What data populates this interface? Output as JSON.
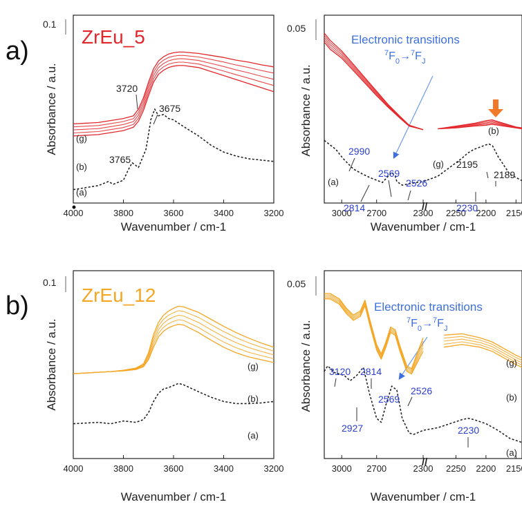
{
  "panel_labels": [
    "a)",
    "b)"
  ],
  "chart_data": [
    {
      "type": "line",
      "panel": "a)",
      "title": "ZrEu_5",
      "title_color": "#e3262a",
      "xlabel": "Wavenumber / cm-1",
      "ylabel": "Absorbance / a.u.",
      "scale_bar_label": "0.1",
      "xlim": [
        4000,
        3200
      ],
      "x_ticks": [
        "4000",
        "3800",
        "3600",
        "3400",
        "3200"
      ],
      "grid": false,
      "series": [
        {
          "label": "(a)",
          "style": "dotted",
          "color": "#222222",
          "x": [
            4000,
            3950,
            3900,
            3860,
            3840,
            3800,
            3780,
            3765,
            3740,
            3710,
            3690,
            3675,
            3660,
            3640,
            3620,
            3600,
            3560,
            3500,
            3450,
            3400,
            3350,
            3300,
            3250,
            3200
          ],
          "y": [
            0.0,
            0.003,
            0.006,
            0.012,
            0.008,
            0.014,
            0.03,
            0.04,
            0.033,
            0.06,
            0.105,
            0.12,
            0.11,
            0.112,
            0.106,
            0.104,
            0.094,
            0.08,
            0.066,
            0.056,
            0.05,
            0.046,
            0.044,
            0.042
          ]
        },
        {
          "label": "(b)",
          "style": "solid",
          "color": "#e3262a",
          "x": [
            4000,
            3900,
            3850,
            3800,
            3760,
            3740,
            3720,
            3700,
            3680,
            3660,
            3640,
            3620,
            3600,
            3580,
            3560,
            3500,
            3450,
            3400,
            3350,
            3300,
            3250,
            3200
          ],
          "y": [
            0.08,
            0.082,
            0.085,
            0.088,
            0.093,
            0.102,
            0.118,
            0.14,
            0.16,
            0.172,
            0.178,
            0.182,
            0.184,
            0.185,
            0.185,
            0.182,
            0.176,
            0.17,
            0.164,
            0.158,
            0.152,
            0.146
          ]
        },
        {
          "label": "(g)",
          "style": "solid",
          "color": "#e3262a",
          "x": [
            4000,
            3900,
            3850,
            3800,
            3760,
            3740,
            3720,
            3700,
            3680,
            3660,
            3640,
            3620,
            3600,
            3580,
            3560,
            3500,
            3450,
            3400,
            3350,
            3300,
            3250,
            3200
          ],
          "y": [
            0.098,
            0.1,
            0.103,
            0.106,
            0.11,
            0.12,
            0.137,
            0.16,
            0.18,
            0.192,
            0.198,
            0.202,
            0.204,
            0.205,
            0.205,
            0.203,
            0.2,
            0.197,
            0.193,
            0.19,
            0.186,
            0.183
          ]
        }
      ],
      "annotations": [
        {
          "text": "3720",
          "x": 3720
        },
        {
          "text": "3675",
          "x": 3675
        },
        {
          "text": "3765",
          "x": 3765
        }
      ]
    },
    {
      "type": "line",
      "panel": "a)",
      "xlabel": "Wavenumber / cm-1",
      "ylabel": "Absorbance / a.u.",
      "scale_bar_label": "0.05",
      "broken_axis": true,
      "x_ticks": [
        "3000",
        "2700",
        "2300",
        "2250",
        "2200",
        "2150"
      ],
      "grid": false,
      "note_title": "Electronic transitions",
      "note_formula": {
        "a": "7",
        "b": "F",
        "c": "0",
        "arrow": "→",
        "d": "7",
        "e": "F",
        "f": "J"
      },
      "series": [
        {
          "label": "(a)",
          "style": "dotted",
          "color": "#222222",
          "x": [
            3150,
            3050,
            2990,
            2900,
            2814,
            2750,
            2650,
            2600,
            2569,
            2540,
            2526,
            2480,
            2400,
            2300,
            2280,
            2260,
            2240,
            2230,
            2220,
            2200,
            2195,
            2189,
            2180,
            2160,
            2140
          ],
          "y": [
            0.05,
            0.04,
            0.03,
            0.018,
            0.012,
            0.008,
            0.003,
            0.01,
            0.014,
            0.01,
            0.004,
            0.0,
            0.002,
            0.004,
            0.01,
            0.02,
            0.03,
            0.036,
            0.04,
            0.045,
            0.046,
            0.044,
            0.032,
            0.012,
            0.005
          ]
        },
        {
          "label": "(b)",
          "style": "solid",
          "color": "#e3262a",
          "x": [
            3150,
            3100,
            3000,
            2900,
            2800,
            2700,
            2600,
            2500,
            2420,
            2300,
            2280,
            2250,
            2220,
            2200,
            2190,
            2170,
            2150,
            2140
          ],
          "y": [
            0.16,
            0.152,
            0.142,
            0.128,
            0.114,
            0.1,
            0.087,
            0.075,
            0.066,
            0.062,
            0.063,
            0.066,
            0.069,
            0.072,
            0.073,
            0.069,
            0.065,
            0.064
          ]
        },
        {
          "label": "(g)",
          "style": "solid",
          "color": "#e3262a",
          "x": [
            3150,
            3100,
            3000,
            2900,
            2800,
            2700,
            2600,
            2500,
            2420,
            2300,
            2280,
            2250,
            2220,
            2200,
            2190,
            2170,
            2150,
            2140
          ],
          "y": [
            0.17,
            0.162,
            0.15,
            0.135,
            0.12,
            0.105,
            0.09,
            0.077,
            0.067,
            0.062,
            0.063,
            0.064,
            0.066,
            0.067,
            0.068,
            0.066,
            0.064,
            0.063
          ]
        }
      ],
      "annotations": [
        {
          "text": "2990",
          "x": 2990
        },
        {
          "text": "2814",
          "x": 2814
        },
        {
          "text": "2569",
          "x": 2569
        },
        {
          "text": "2526",
          "x": 2526
        },
        {
          "text": "2230",
          "x": 2230
        },
        {
          "text": "2195",
          "x": 2195
        },
        {
          "text": "2189",
          "x": 2189
        },
        {
          "text": "(g)",
          "x": 2300
        },
        {
          "text": "(b)",
          "x": 2195
        }
      ]
    },
    {
      "type": "line",
      "panel": "b)",
      "title": "ZrEu_12",
      "title_color": "#f5a623",
      "xlabel": "Wavenumber / cm-1",
      "ylabel": "Absorbance / a.u.",
      "scale_bar_label": "0.1",
      "xlim": [
        4000,
        3200
      ],
      "x_ticks": [
        "4000",
        "3800",
        "3600",
        "3400",
        "3200"
      ],
      "grid": false,
      "series": [
        {
          "label": "(a)",
          "style": "dotted",
          "color": "#222222",
          "x": [
            4000,
            3900,
            3850,
            3800,
            3750,
            3720,
            3700,
            3680,
            3660,
            3640,
            3620,
            3600,
            3580,
            3560,
            3500,
            3450,
            3400,
            3350,
            3300,
            3250,
            3200
          ],
          "y": [
            0.05,
            0.052,
            0.05,
            0.054,
            0.052,
            0.056,
            0.066,
            0.082,
            0.094,
            0.1,
            0.102,
            0.105,
            0.108,
            0.106,
            0.096,
            0.088,
            0.082,
            0.079,
            0.079,
            0.08,
            0.082
          ]
        },
        {
          "label": "(b)",
          "style": "solid",
          "color": "#f5a623",
          "x": [
            4000,
            3900,
            3850,
            3800,
            3750,
            3720,
            3700,
            3680,
            3660,
            3640,
            3620,
            3600,
            3580,
            3560,
            3500,
            3450,
            3400,
            3350,
            3300,
            3250,
            3200
          ],
          "y": [
            0.122,
            0.124,
            0.125,
            0.126,
            0.128,
            0.132,
            0.142,
            0.16,
            0.175,
            0.183,
            0.188,
            0.191,
            0.193,
            0.192,
            0.181,
            0.17,
            0.16,
            0.152,
            0.146,
            0.142,
            0.138
          ]
        },
        {
          "label": "(g)",
          "style": "solid",
          "color": "#f5a623",
          "x": [
            4000,
            3900,
            3850,
            3800,
            3750,
            3720,
            3700,
            3680,
            3660,
            3640,
            3620,
            3600,
            3580,
            3560,
            3500,
            3450,
            3400,
            3350,
            3300,
            3250,
            3200
          ],
          "y": [
            0.122,
            0.124,
            0.125,
            0.127,
            0.13,
            0.136,
            0.152,
            0.178,
            0.196,
            0.206,
            0.212,
            0.216,
            0.219,
            0.218,
            0.21,
            0.2,
            0.19,
            0.181,
            0.173,
            0.166,
            0.16
          ]
        }
      ]
    },
    {
      "type": "line",
      "panel": "b)",
      "xlabel": "Wavenumber / cm-1",
      "ylabel": "Absorbance / a.u.",
      "scale_bar_label": "0.05",
      "broken_axis": true,
      "x_ticks": [
        "3000",
        "2700",
        "2300",
        "2250",
        "2200",
        "2150"
      ],
      "grid": false,
      "note_title": "Electronic transitions",
      "note_formula": {
        "a": "7",
        "b": "F",
        "c": "0",
        "arrow": "→",
        "d": "7",
        "e": "F",
        "f": "J"
      },
      "series": [
        {
          "label": "(a)",
          "style": "dotted",
          "color": "#222222",
          "x": [
            3150,
            3120,
            3060,
            2980,
            2927,
            2870,
            2814,
            2760,
            2700,
            2660,
            2620,
            2569,
            2526,
            2480,
            2420,
            2380,
            2300,
            2280,
            2260,
            2240,
            2230,
            2220,
            2200,
            2180,
            2160,
            2140
          ],
          "y": [
            0.11,
            0.118,
            0.108,
            0.104,
            0.096,
            0.104,
            0.116,
            0.076,
            0.04,
            0.034,
            0.06,
            0.088,
            0.082,
            0.04,
            0.018,
            0.016,
            0.022,
            0.026,
            0.032,
            0.038,
            0.04,
            0.038,
            0.032,
            0.022,
            0.01,
            0.004
          ]
        },
        {
          "label": "(b)",
          "style": "solid",
          "color": "#f5a623",
          "x": [
            3150,
            3100,
            3020,
            2960,
            2900,
            2840,
            2800,
            2760,
            2700,
            2660,
            2620,
            2580,
            2540,
            2500,
            2440,
            2400,
            2300,
            2270,
            2240,
            2210,
            2190,
            2170,
            2150,
            2140
          ],
          "y": [
            0.218,
            0.218,
            0.21,
            0.196,
            0.186,
            0.192,
            0.208,
            0.18,
            0.142,
            0.128,
            0.146,
            0.168,
            0.164,
            0.14,
            0.11,
            0.106,
            0.14,
            0.146,
            0.15,
            0.146,
            0.14,
            0.13,
            0.12,
            0.116
          ]
        },
        {
          "label": "(g)",
          "style": "solid",
          "color": "#f5a623",
          "x": [
            3150,
            3100,
            3020,
            2960,
            2900,
            2840,
            2800,
            2760,
            2700,
            2660,
            2620,
            2580,
            2540,
            2500,
            2440,
            2400,
            2300,
            2270,
            2240,
            2210,
            2190,
            2170,
            2150,
            2140
          ],
          "y": [
            0.226,
            0.226,
            0.218,
            0.204,
            0.194,
            0.2,
            0.216,
            0.188,
            0.15,
            0.136,
            0.154,
            0.176,
            0.172,
            0.148,
            0.118,
            0.114,
            0.16,
            0.164,
            0.166,
            0.16,
            0.154,
            0.144,
            0.134,
            0.13
          ]
        }
      ],
      "annotations": [
        {
          "text": "3120",
          "x": 3120
        },
        {
          "text": "2927",
          "x": 2927
        },
        {
          "text": "2814",
          "x": 2814
        },
        {
          "text": "2569",
          "x": 2569
        },
        {
          "text": "2526",
          "x": 2526
        },
        {
          "text": "2230",
          "x": 2230
        }
      ]
    }
  ]
}
